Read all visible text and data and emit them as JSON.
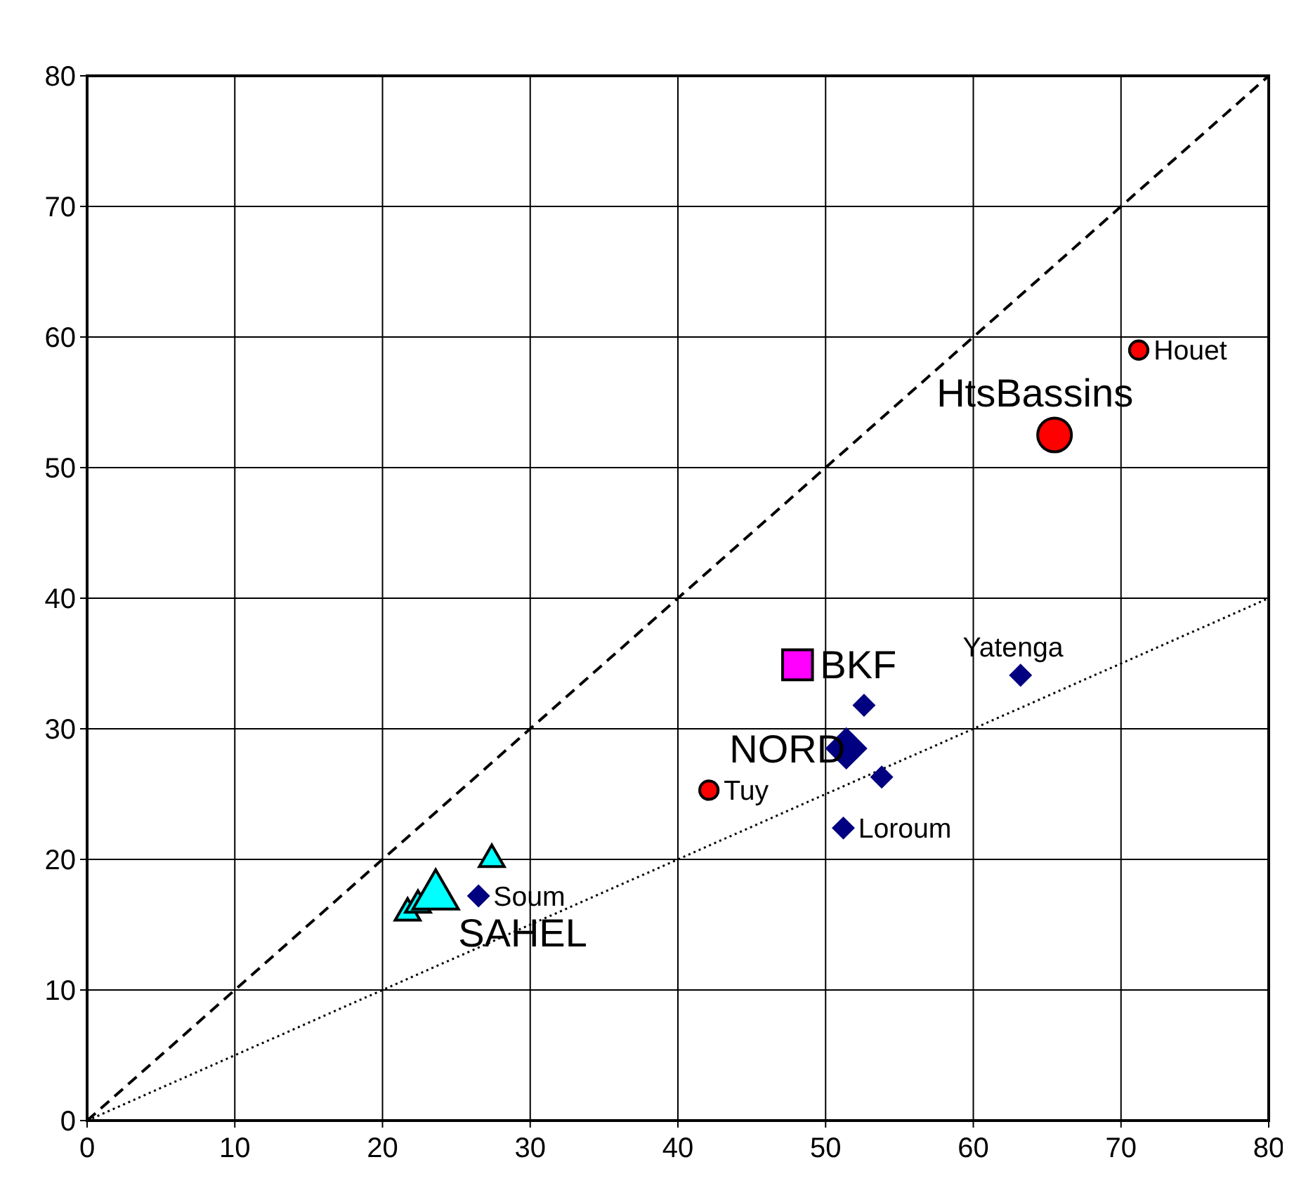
{
  "chart_data": {
    "type": "bubble",
    "xlim": [
      0,
      80
    ],
    "ylim": [
      0,
      80
    ],
    "xticks": [
      0,
      10,
      20,
      30,
      40,
      50,
      60,
      70,
      80
    ],
    "yticks": [
      0,
      10,
      20,
      30,
      40,
      50,
      60,
      70,
      80
    ],
    "grid": true,
    "series": [
      {
        "type": "line",
        "color": "#000000",
        "x": [
          0,
          80
        ],
        "values": [
          0,
          80
        ],
        "line_style": "dashed",
        "marker": "none"
      },
      {
        "type": "line",
        "color": "#000000",
        "x": [
          0,
          80
        ],
        "values": [
          0,
          40
        ],
        "line_style": "dotted",
        "marker": "none"
      },
      {
        "color": "#ff0000",
        "marker": "circle",
        "x": [
          71.2,
          42.1
        ],
        "values": [
          59.0,
          25.3
        ],
        "sizes": [
          0.3,
          0.3
        ]
      },
      {
        "color": "#ff0000",
        "marker": "circle",
        "x": [
          65.5
        ],
        "values": [
          52.5
        ],
        "sizes": [
          1
        ]
      },
      {
        "color": "#000080",
        "marker": "diamond",
        "x": [
          52.6,
          53.8,
          51.2,
          63.2,
          26.5
        ],
        "values": [
          31.8,
          26.3,
          22.4,
          34.1,
          17.2
        ],
        "sizes": [
          0.3,
          0.3,
          0.3,
          0.3,
          0.3
        ]
      },
      {
        "color": "#000080",
        "marker": "diamond",
        "x": [
          51.4
        ],
        "values": [
          28.5
        ],
        "sizes": [
          1
        ]
      },
      {
        "color": "#00ffff",
        "marker": "triangle",
        "x": [
          27.4,
          21.7,
          22.4
        ],
        "values": [
          20.0,
          15.9,
          16.5
        ],
        "sizes": [
          0.3,
          0.3,
          0.3
        ]
      },
      {
        "color": "#00ffff",
        "marker": "triangle",
        "x": [
          23.6
        ],
        "values": [
          17.2
        ],
        "sizes": [
          1
        ]
      },
      {
        "color": "#ff00ff",
        "marker": "square",
        "x": [
          48.1
        ],
        "values": [
          34.9
        ],
        "sizes": [
          1
        ]
      }
    ],
    "annotations": [
      {
        "text": "Houet",
        "x": 71.2,
        "y": 59.0
      },
      {
        "text": "HtsBassins",
        "x": 65.5,
        "y": 52.5
      },
      {
        "text": "BKF",
        "x": 48.1,
        "y": 34.9
      },
      {
        "text": "NORD",
        "x": 51.4,
        "y": 28.5
      },
      {
        "text": "Yatenga",
        "x": 63.2,
        "y": 34.1
      },
      {
        "text": "Tuy",
        "x": 42.1,
        "y": 25.3
      },
      {
        "text": "Loroum",
        "x": 51.2,
        "y": 22.4
      },
      {
        "text": "SAHEL",
        "x": 23.6,
        "y": 17.2
      },
      {
        "text": "Soum",
        "x": 26.5,
        "y": 17.2
      }
    ]
  }
}
